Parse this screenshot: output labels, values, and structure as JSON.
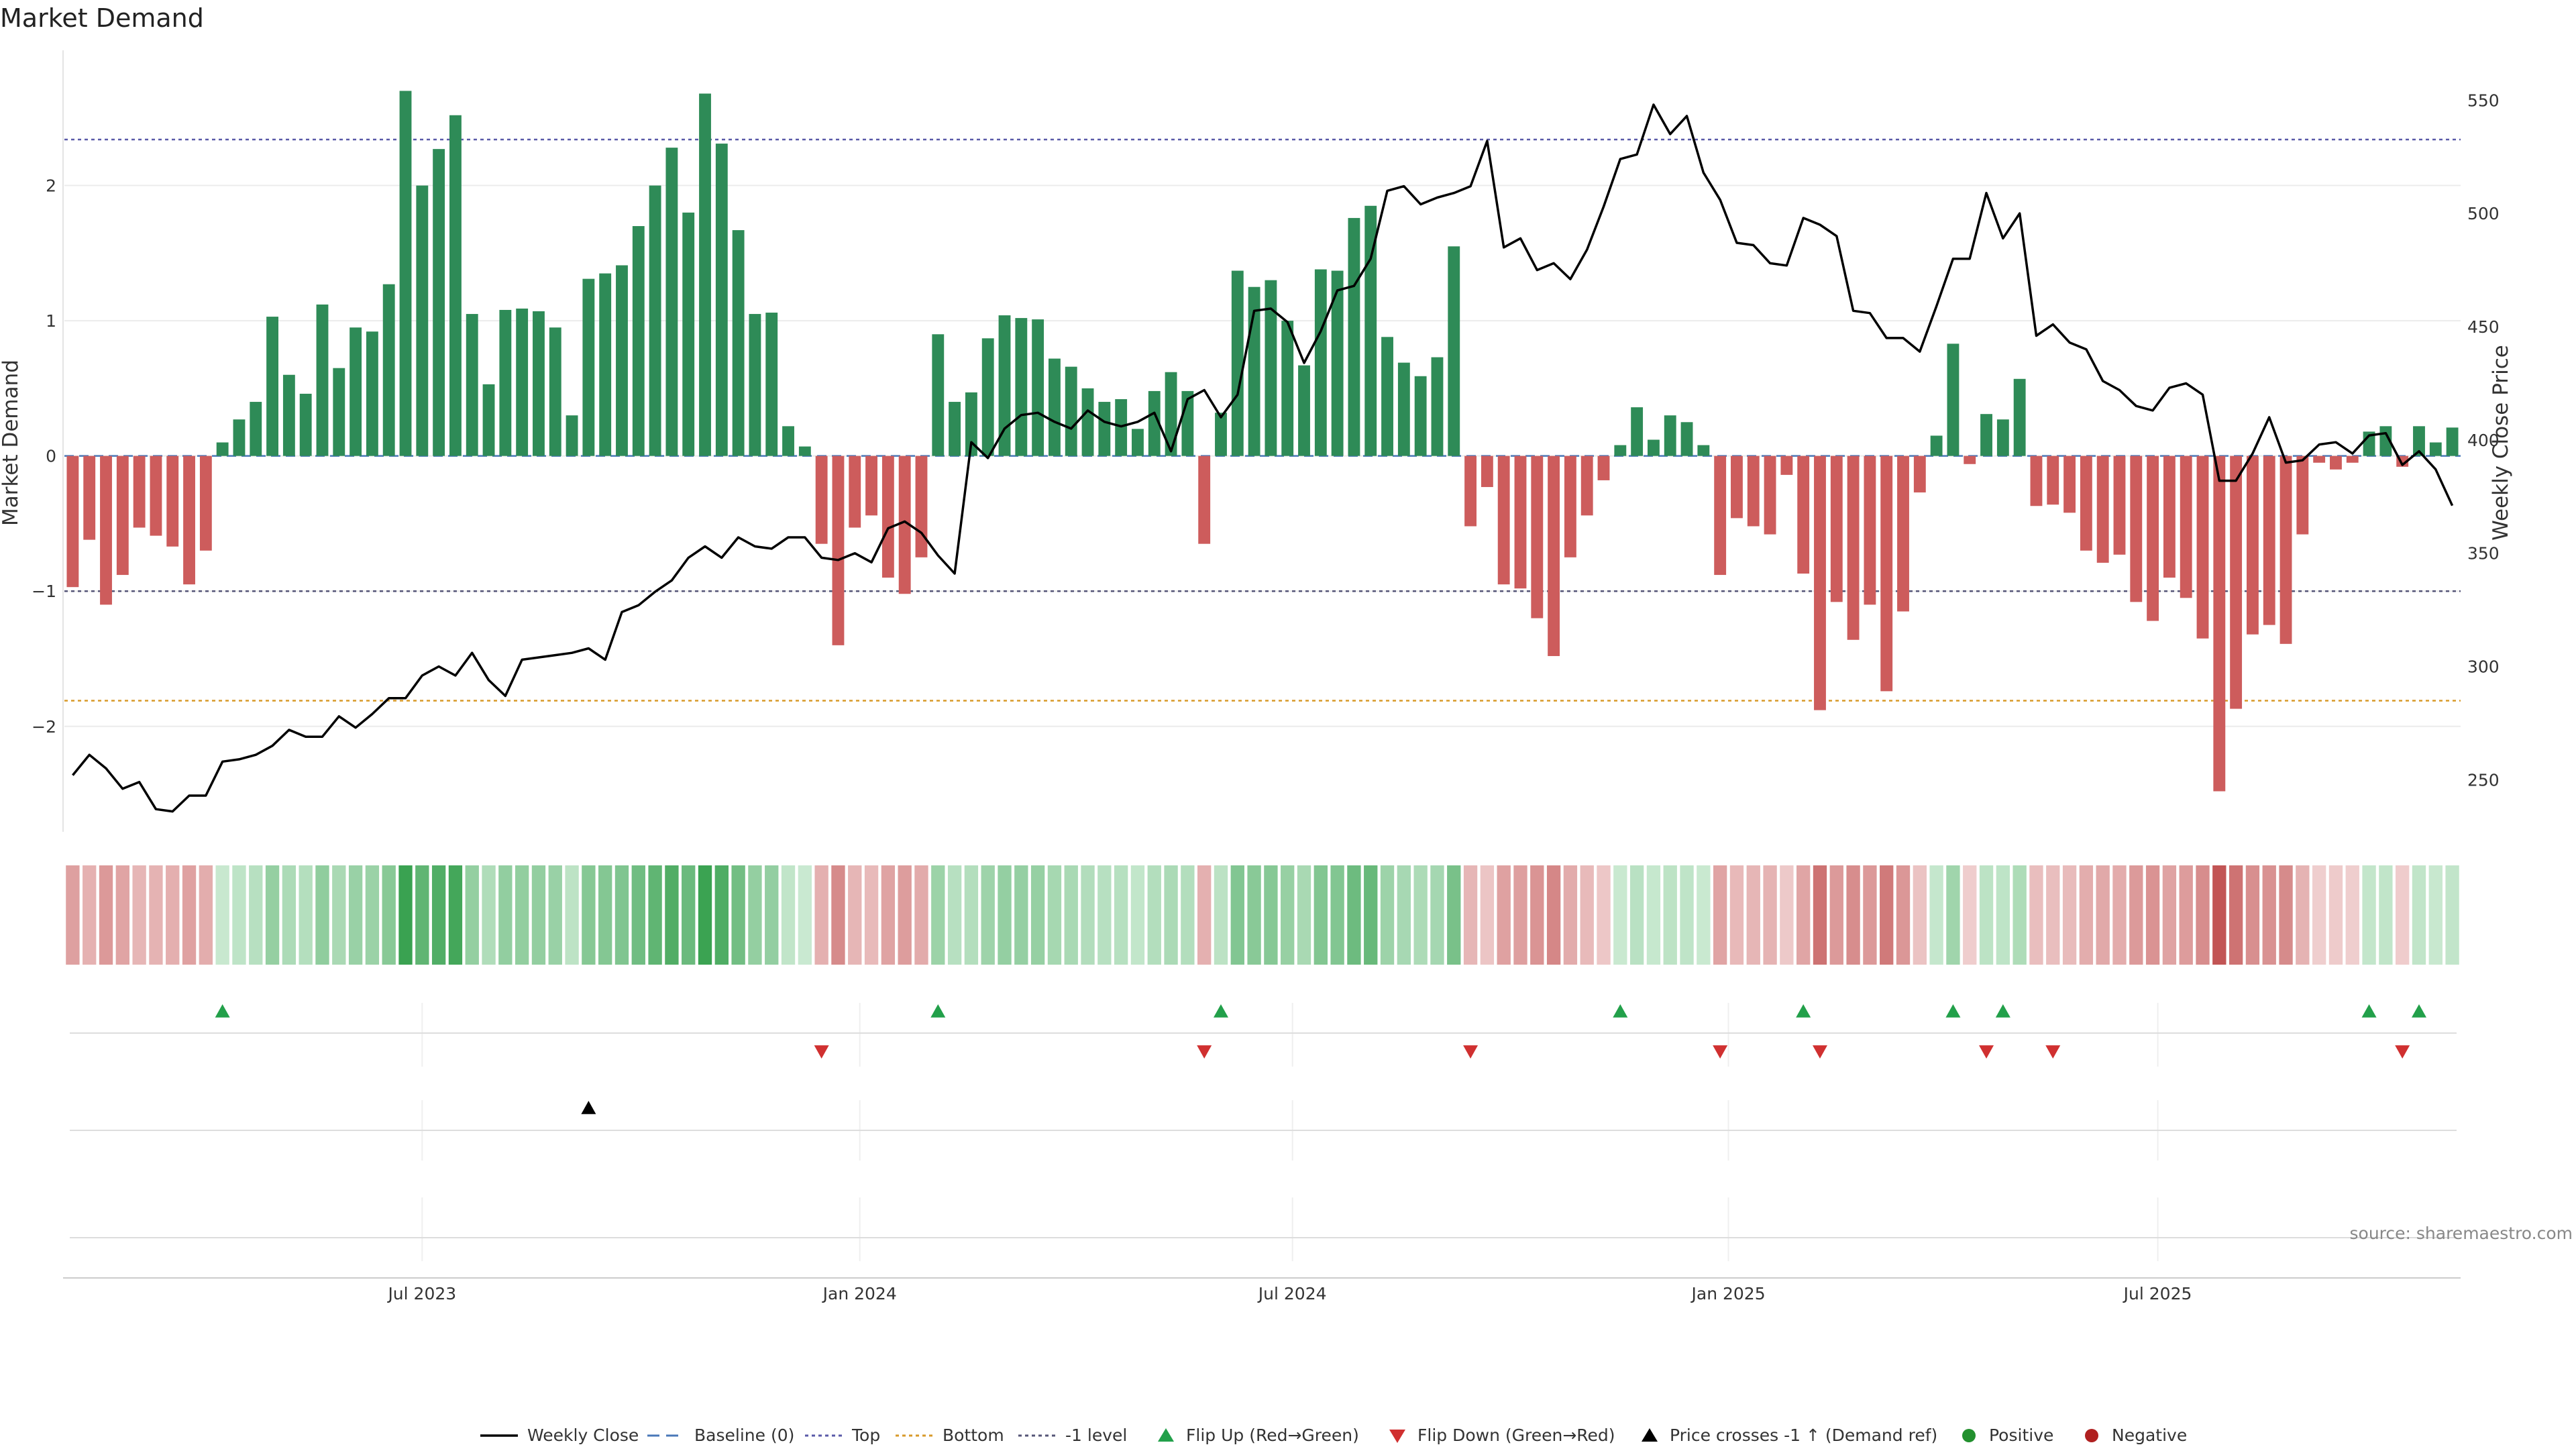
{
  "chart_data": {
    "type": "bar",
    "title": "Market Demand",
    "ylabel_left": "Market Demand",
    "ylabel_right": "Weekly Close Price",
    "left_ticks": [
      -2,
      -1,
      0,
      1,
      2
    ],
    "left_ylim": [
      -2.78,
      3.0
    ],
    "right_ticks": [
      250,
      300,
      350,
      400,
      450,
      500,
      550
    ],
    "right_ylim": [
      227,
      572
    ],
    "x_ticks": [
      "Jul 2023",
      "Jan 2024",
      "Jul 2024",
      "Jan 2025",
      "Jul 2025"
    ],
    "x_tick_weeks": [
      21.5,
      47.8,
      73.8,
      100,
      125.8
    ],
    "reference_lines": {
      "top": 2.34,
      "bottom": -1.81,
      "minus_one": -1.0,
      "baseline": 0
    },
    "demand": [
      -0.97,
      -0.62,
      -1.1,
      -0.88,
      -0.53,
      -0.59,
      -0.67,
      -0.95,
      -0.7,
      0.1,
      0.27,
      0.4,
      1.03,
      0.6,
      0.46,
      1.12,
      0.65,
      0.95,
      0.92,
      1.27,
      2.7,
      2.0,
      2.27,
      2.52,
      1.05,
      0.53,
      1.08,
      1.09,
      1.07,
      0.95,
      0.3,
      1.31,
      1.35,
      1.41,
      1.7,
      2.0,
      2.28,
      1.8,
      2.68,
      2.31,
      1.67,
      1.05,
      1.06,
      0.22,
      0.07,
      -0.65,
      -1.4,
      -0.53,
      -0.44,
      -0.9,
      -1.02,
      -0.75,
      0.9,
      0.4,
      0.47,
      0.87,
      1.04,
      1.02,
      1.01,
      0.72,
      0.66,
      0.5,
      0.4,
      0.42,
      0.2,
      0.48,
      0.62,
      0.48,
      -0.65,
      0.32,
      1.37,
      1.25,
      1.3,
      1.0,
      0.67,
      1.38,
      1.37,
      1.76,
      1.85,
      0.88,
      0.69,
      0.59,
      0.73,
      1.55,
      -0.52,
      -0.23,
      -0.95,
      -0.98,
      -1.2,
      -1.48,
      -0.75,
      -0.44,
      -0.18,
      0.08,
      0.36,
      0.12,
      0.3,
      0.25,
      0.08,
      -0.88,
      -0.46,
      -0.52,
      -0.58,
      -0.14,
      -0.87,
      -1.88,
      -1.08,
      -1.36,
      -1.1,
      -1.74,
      -1.15,
      -0.27,
      0.15,
      0.83,
      -0.06,
      0.31,
      0.27,
      0.57,
      -0.37,
      -0.36,
      -0.42,
      -0.7,
      -0.79,
      -0.73,
      -1.08,
      -1.22,
      -0.9,
      -1.05,
      -1.35,
      -2.48,
      -1.87,
      -1.32,
      -1.25,
      -1.39,
      -0.58,
      -0.05,
      -0.1,
      -0.05,
      0.18,
      0.22,
      -0.08,
      0.22,
      0.1,
      0.21
    ],
    "close": [
      252,
      261,
      255,
      246,
      249,
      237,
      236,
      243,
      243,
      258,
      259,
      261,
      265,
      272,
      269,
      269,
      278,
      273,
      279,
      286,
      286,
      296,
      300,
      296,
      306,
      294,
      287,
      303,
      304,
      305,
      306,
      308,
      303,
      324,
      327,
      333,
      338,
      348,
      353,
      348,
      357,
      353,
      352,
      357,
      357,
      348,
      347,
      350,
      346,
      361,
      364,
      359,
      349,
      341,
      399,
      392,
      405,
      411,
      412,
      408,
      405,
      413,
      408,
      406,
      408,
      412,
      395,
      418,
      422,
      410,
      420,
      457,
      458,
      452,
      434,
      448,
      466,
      468,
      480,
      510,
      512,
      504,
      507,
      509,
      512,
      532,
      485,
      489,
      475,
      478,
      471,
      484,
      503,
      524,
      526,
      548,
      535,
      543,
      518,
      506,
      487,
      486,
      478,
      477,
      498,
      495,
      490,
      457,
      456,
      445,
      445,
      439,
      459,
      480,
      480,
      509,
      489,
      500,
      446,
      451,
      443,
      440,
      426,
      422,
      415,
      413,
      423,
      425,
      420,
      382,
      382,
      394,
      410,
      390,
      391,
      398,
      399,
      394,
      402,
      403,
      389,
      395,
      387,
      371
    ],
    "markers": {
      "flip_up_weeks": [
        9,
        52,
        69,
        93,
        104,
        113,
        116,
        138,
        141
      ],
      "flip_down_weeks": [
        45,
        68,
        84,
        99,
        105,
        115,
        119,
        140
      ],
      "price_cross_weeks": [
        31
      ]
    },
    "legend": [
      {
        "label": "Weekly Close"
      },
      {
        "label": "Baseline (0)"
      },
      {
        "label": "Top"
      },
      {
        "label": "Bottom"
      },
      {
        "label": "-1 level"
      },
      {
        "label": "Flip Up (Red→Green)"
      },
      {
        "label": "Flip Down (Green→Red)"
      },
      {
        "label": "Price crosses -1 ↑ (Demand ref)"
      },
      {
        "label": "Positive"
      },
      {
        "label": "Negative"
      }
    ],
    "source": "source: sharemaestro.com",
    "colors": {
      "positive": "#2e8b57",
      "negative": "#cd5c5c",
      "close_line": "#000000",
      "baseline": "#4a78b8",
      "top": "#5a5aa8",
      "bottom": "#d89a2a",
      "minus_one": "#555577",
      "flip_up": "#22a04a",
      "flip_down": "#d03030",
      "price_cross": "#000000",
      "positive_dot": "#22902e",
      "negative_dot": "#b02020"
    }
  }
}
